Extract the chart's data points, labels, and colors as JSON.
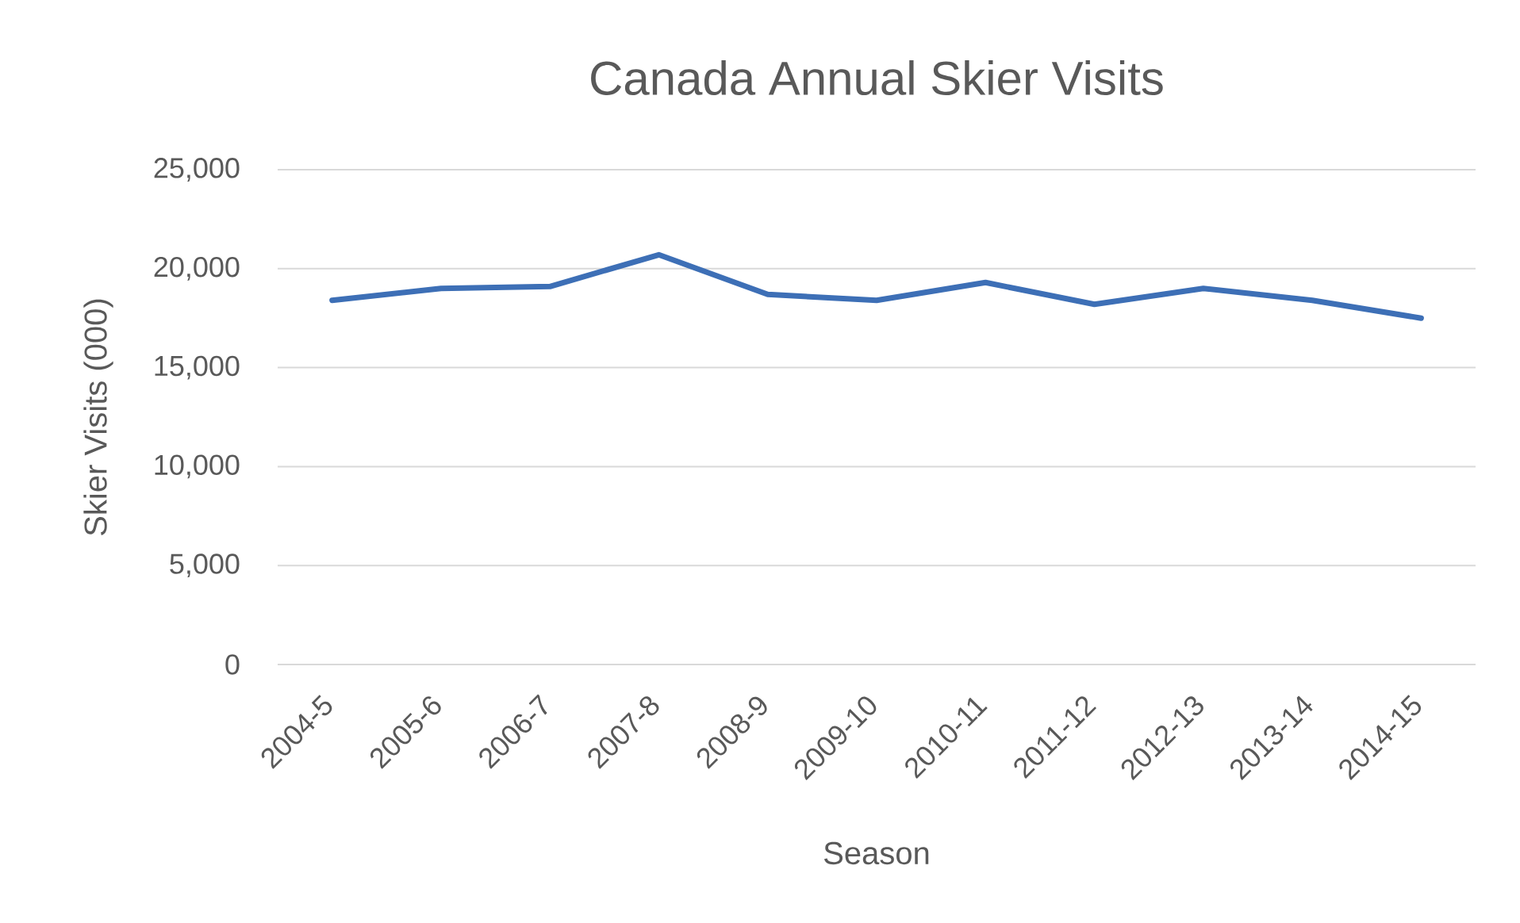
{
  "chart_data": {
    "type": "line",
    "title": "Canada Annual Skier Visits",
    "xlabel": "Season",
    "ylabel": "Skier Visits (000)",
    "categories": [
      "2004-5",
      "2005-6",
      "2006-7",
      "2007-8",
      "2008-9",
      "2009-10",
      "2010-11",
      "2011-12",
      "2012-13",
      "2013-14",
      "2014-15"
    ],
    "values": [
      18400,
      19000,
      19100,
      20700,
      18700,
      18400,
      19300,
      18200,
      19000,
      18400,
      17500
    ],
    "color": "#3d6fb6",
    "line_style": "solid",
    "ylim": [
      0,
      25000
    ],
    "yticks": [
      0,
      {
        "value": 5000,
        "label": "5,000"
      },
      {
        "value": 10000,
        "label": "10,000"
      },
      {
        "value": 15000,
        "label": "15,000"
      },
      {
        "value": 20000,
        "label": "20,000"
      },
      {
        "value": 25000,
        "label": "25,000"
      }
    ],
    "grid": "y"
  }
}
